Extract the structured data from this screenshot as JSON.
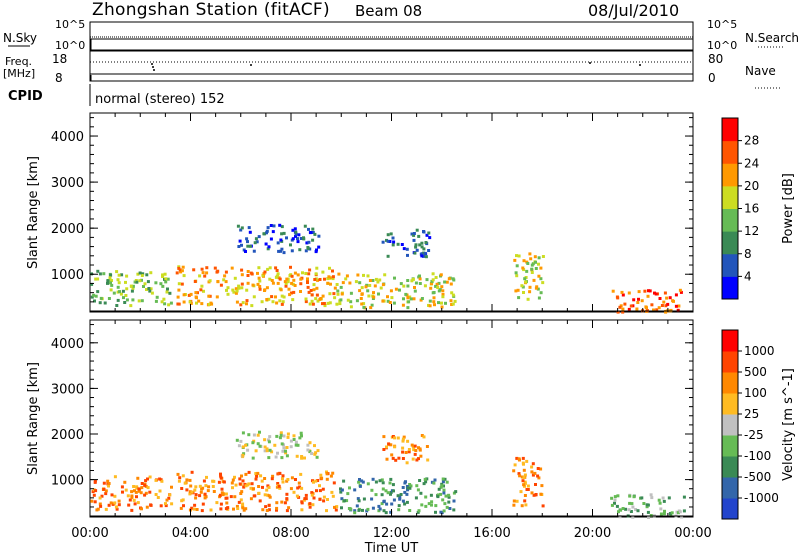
{
  "header": {
    "title": "Zhongshan Station (fitACF)",
    "beam": "Beam 08",
    "date": "08/Jul/2010"
  },
  "strip": {
    "nsky_label": "N.Sky",
    "nsearch_label": "N.Search",
    "freq_label": "Freq.",
    "freq_unit": "[MHz]",
    "nave_label": "Nave",
    "cpid_label": "CPID",
    "cpid_value": "normal (stereo) 152",
    "noise_ticks": [
      "10^5",
      "10^0"
    ],
    "freq_ticks": [
      "18",
      "8"
    ],
    "nave_ticks": [
      "80",
      "0"
    ]
  },
  "chart_data": [
    {
      "type": "heatmap",
      "title": "",
      "xlabel": "Time UT",
      "ylabel": "Slant Range [km]",
      "xlim": [
        0,
        24
      ],
      "x_tick_labels": [
        "00:00",
        "04:00",
        "08:00",
        "12:00",
        "16:00",
        "20:00",
        "00:00"
      ],
      "ylim": [
        180,
        4500
      ],
      "y_ticks": [
        1000,
        2000,
        3000,
        4000
      ],
      "colorbar": {
        "label": "Power [dB]",
        "ticks": [
          "4",
          "8",
          "12",
          "16",
          "20",
          "24",
          "28"
        ],
        "colors": [
          "#0000ff",
          "#2255bb",
          "#3a8a55",
          "#66bb55",
          "#ccdd22",
          "#ff9900",
          "#ff5500",
          "#ff0000"
        ]
      },
      "echo_regions": [
        {
          "t0": 0.0,
          "t1": 3.2,
          "r0": 350,
          "r1": 1100,
          "level": 3
        },
        {
          "t0": 3.4,
          "t1": 9.8,
          "r0": 350,
          "r1": 1200,
          "level": 5
        },
        {
          "t0": 5.8,
          "t1": 9.1,
          "r0": 1500,
          "r1": 2100,
          "level": 1
        },
        {
          "t0": 9.8,
          "t1": 14.5,
          "r0": 300,
          "r1": 1050,
          "level": 4
        },
        {
          "t0": 11.6,
          "t1": 13.5,
          "r0": 1400,
          "r1": 2000,
          "level": 1
        },
        {
          "t0": 16.8,
          "t1": 18.0,
          "r0": 450,
          "r1": 1500,
          "level": 4
        },
        {
          "t0": 20.7,
          "t1": 23.6,
          "r0": 200,
          "r1": 700,
          "level": 6
        }
      ]
    },
    {
      "type": "heatmap",
      "title": "",
      "xlabel": "Time UT",
      "ylabel": "Slant Range [km]",
      "xlim": [
        0,
        24
      ],
      "x_tick_labels": [
        "00:00",
        "04:00",
        "08:00",
        "12:00",
        "16:00",
        "20:00",
        "00:00"
      ],
      "ylim": [
        180,
        4500
      ],
      "y_ticks": [
        1000,
        2000,
        3000,
        4000
      ],
      "colorbar": {
        "label": "Velocity [m s^-1]",
        "ticks": [
          "1000",
          "500",
          "100",
          "25",
          "-25",
          "-100",
          "-500",
          "-1000"
        ],
        "colors": [
          "#2244cc",
          "#3366aa",
          "#3a8a55",
          "#66bb55",
          "#c0c0c0",
          "#ffbb22",
          "#ff8800",
          "#ff4400",
          "#ff0000"
        ]
      },
      "echo_regions": [
        {
          "t0": 0.0,
          "t1": 3.2,
          "r0": 350,
          "r1": 1100,
          "level": 6
        },
        {
          "t0": 3.4,
          "t1": 9.8,
          "r0": 350,
          "r1": 1200,
          "level": 6
        },
        {
          "t0": 5.8,
          "t1": 9.1,
          "r0": 1500,
          "r1": 2100,
          "level": 4
        },
        {
          "t0": 9.8,
          "t1": 14.5,
          "r0": 300,
          "r1": 1050,
          "level": 2
        },
        {
          "t0": 11.6,
          "t1": 13.5,
          "r0": 1400,
          "r1": 2000,
          "level": 6
        },
        {
          "t0": 16.8,
          "t1": 18.0,
          "r0": 450,
          "r1": 1500,
          "level": 6
        },
        {
          "t0": 20.7,
          "t1": 23.6,
          "r0": 200,
          "r1": 700,
          "level": 3
        }
      ]
    }
  ]
}
